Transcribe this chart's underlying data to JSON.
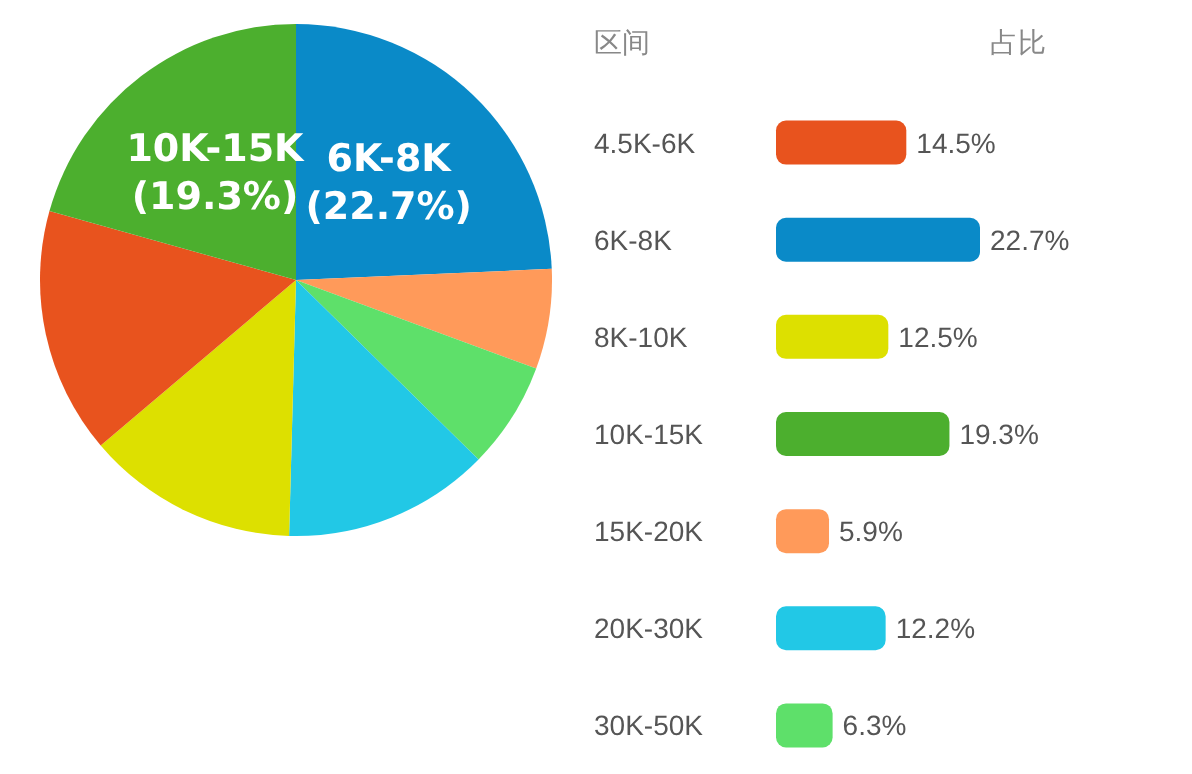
{
  "chart_data": [
    {
      "type": "pie",
      "categories": [
        "6K-8K",
        null,
        null,
        null,
        null,
        null,
        "10K-15K"
      ],
      "values": [
        22.7,
        5.9,
        6.3,
        12.2,
        12.5,
        14.5,
        19.3
      ],
      "colors": [
        "#0a8ac8",
        "#ff9a5a",
        "#5ee06a",
        "#22c8e6",
        "#dde000",
        "#e8531e",
        "#4caf2e"
      ],
      "value_labels": [
        "(22.7%)",
        null,
        null,
        null,
        null,
        null,
        "(19.3%)"
      ]
    },
    {
      "type": "bar",
      "orientation": "horizontal",
      "ylabel": "区间",
      "xlabel": "占比",
      "categories": [
        "4.5K-6K",
        "6K-8K",
        "8K-10K",
        "10K-15K",
        "15K-20K",
        "20K-30K",
        "30K-50K"
      ],
      "values": [
        14.5,
        22.7,
        12.5,
        19.3,
        5.9,
        12.2,
        6.3
      ],
      "colors": [
        "#e8531e",
        "#0a8ac8",
        "#dde000",
        "#4caf2e",
        "#ff9a5a",
        "#22c8e6",
        "#5ee06a"
      ],
      "value_labels": [
        "14.5%",
        "22.7%",
        "12.5%",
        "19.3%",
        "5.9%",
        "12.2%",
        "6.3%"
      ]
    }
  ]
}
